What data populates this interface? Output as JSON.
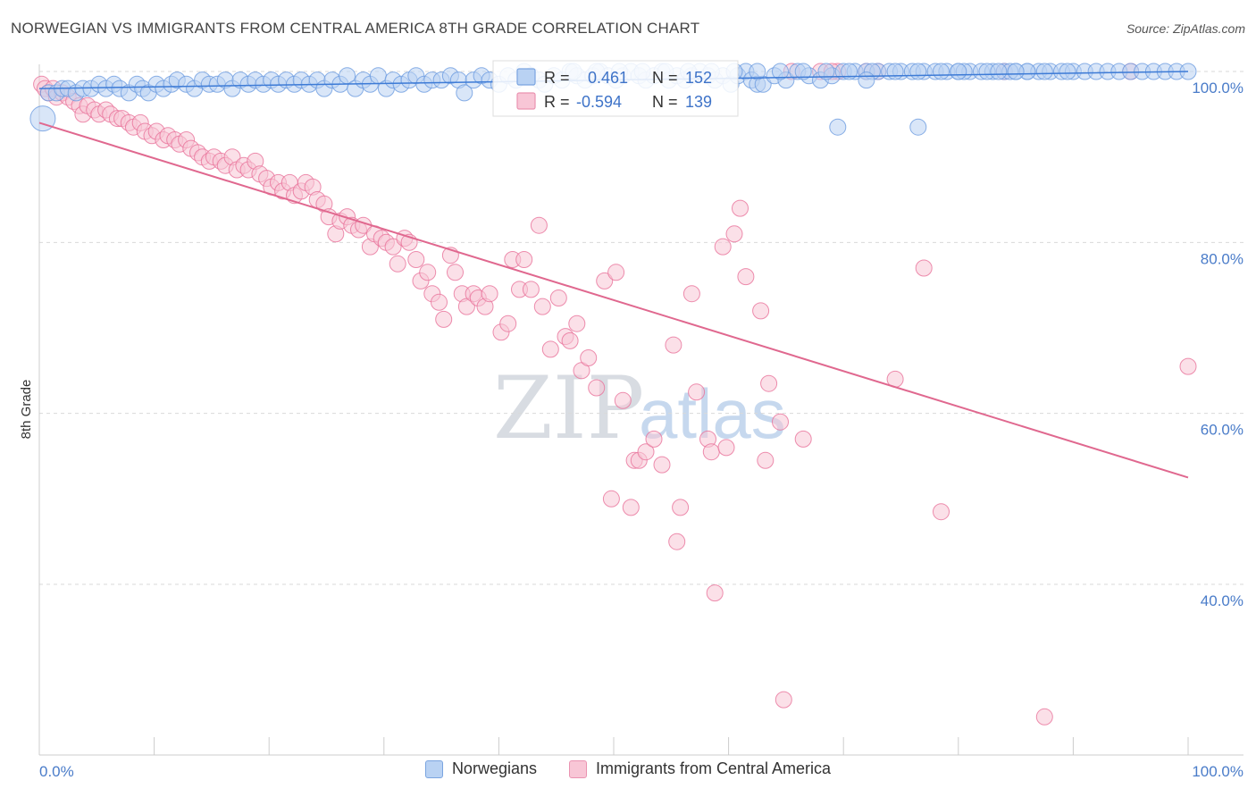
{
  "chart_data": {
    "type": "scatter",
    "title": "NORWEGIAN VS IMMIGRANTS FROM CENTRAL AMERICA 8TH GRADE CORRELATION CHART",
    "source": "Source: ZipAtlas.com",
    "ylabel": "8th Grade",
    "xlabel": "",
    "xlim": [
      0,
      100
    ],
    "ylim": [
      20,
      102
    ],
    "x_tick_labels": {
      "left": "0.0%",
      "right": "100.0%"
    },
    "y_ticks": [
      {
        "value": 100,
        "label": "100.0%"
      },
      {
        "value": 80,
        "label": "80.0%"
      },
      {
        "value": 60,
        "label": "60.0%"
      },
      {
        "value": 40,
        "label": "40.0%"
      }
    ],
    "watermark": {
      "a": "ZIP",
      "b": "atlas"
    },
    "stats_legend": {
      "r_label": "R =",
      "n_label": "N =",
      "rows": [
        {
          "series": "Norwegians",
          "r": "0.461",
          "n": "152"
        },
        {
          "series": "Immigrants from Central America",
          "r": "-0.594",
          "n": "139"
        }
      ]
    },
    "series": [
      {
        "name": "Norwegians",
        "color": "#6b9be0",
        "fill": "#b9d2f3",
        "trend": {
          "x": [
            0,
            100
          ],
          "y": [
            98.0,
            100.0
          ]
        },
        "points": [
          [
            0.3,
            94.5
          ],
          [
            0.8,
            97.5
          ],
          [
            1.5,
            97.5
          ],
          [
            2.0,
            98.0
          ],
          [
            2.5,
            98.0
          ],
          [
            3.2,
            97.5
          ],
          [
            3.8,
            98.0
          ],
          [
            4.5,
            98.0
          ],
          [
            5.2,
            98.5
          ],
          [
            5.8,
            98.0
          ],
          [
            6.5,
            98.5
          ],
          [
            7.0,
            98.0
          ],
          [
            7.8,
            97.5
          ],
          [
            8.5,
            98.5
          ],
          [
            9.0,
            98.0
          ],
          [
            9.5,
            97.5
          ],
          [
            10.2,
            98.5
          ],
          [
            10.8,
            98.0
          ],
          [
            11.5,
            98.5
          ],
          [
            12.0,
            99.0
          ],
          [
            12.8,
            98.5
          ],
          [
            13.5,
            98.0
          ],
          [
            14.2,
            99.0
          ],
          [
            14.8,
            98.5
          ],
          [
            15.5,
            98.5
          ],
          [
            16.2,
            99.0
          ],
          [
            16.8,
            98.0
          ],
          [
            17.5,
            99.0
          ],
          [
            18.2,
            98.5
          ],
          [
            18.8,
            99.0
          ],
          [
            19.5,
            98.5
          ],
          [
            20.2,
            99.0
          ],
          [
            20.8,
            98.5
          ],
          [
            21.5,
            99.0
          ],
          [
            22.2,
            98.5
          ],
          [
            22.8,
            99.0
          ],
          [
            23.5,
            98.5
          ],
          [
            24.2,
            99.0
          ],
          [
            24.8,
            98.0
          ],
          [
            25.5,
            99.0
          ],
          [
            26.2,
            98.5
          ],
          [
            26.8,
            99.5
          ],
          [
            27.5,
            98.0
          ],
          [
            28.2,
            99.0
          ],
          [
            28.8,
            98.5
          ],
          [
            29.5,
            99.5
          ],
          [
            30.2,
            98.0
          ],
          [
            30.8,
            99.0
          ],
          [
            31.5,
            98.5
          ],
          [
            32.2,
            99.0
          ],
          [
            32.8,
            99.5
          ],
          [
            33.5,
            98.5
          ],
          [
            34.2,
            99.0
          ],
          [
            35.0,
            99.0
          ],
          [
            35.8,
            99.5
          ],
          [
            36.5,
            99.0
          ],
          [
            37.0,
            97.5
          ],
          [
            37.8,
            99.0
          ],
          [
            38.5,
            99.5
          ],
          [
            39.2,
            99.0
          ],
          [
            40.0,
            98.5
          ],
          [
            40.8,
            99.5
          ],
          [
            41.5,
            99.0
          ],
          [
            42.2,
            100.0
          ],
          [
            42.8,
            99.5
          ],
          [
            43.5,
            99.0
          ],
          [
            44.0,
            98.5
          ],
          [
            44.8,
            99.5
          ],
          [
            45.5,
            99.0
          ],
          [
            46.2,
            100.0
          ],
          [
            46.8,
            99.5
          ],
          [
            47.5,
            99.0
          ],
          [
            48.2,
            99.5
          ],
          [
            48.8,
            100.0
          ],
          [
            49.5,
            99.5
          ],
          [
            50.2,
            99.0
          ],
          [
            50.8,
            99.5
          ],
          [
            51.5,
            100.0
          ],
          [
            52.2,
            99.5
          ],
          [
            52.8,
            99.0
          ],
          [
            53.5,
            99.5
          ],
          [
            54.2,
            100.0
          ],
          [
            54.8,
            99.0
          ],
          [
            55.5,
            99.5
          ],
          [
            56.2,
            99.0
          ],
          [
            56.8,
            99.5
          ],
          [
            57.5,
            100.0
          ],
          [
            58.2,
            99.5
          ],
          [
            58.8,
            99.0
          ],
          [
            59.5,
            99.5
          ],
          [
            60.2,
            98.5
          ],
          [
            60.8,
            99.5
          ],
          [
            61.5,
            100.0
          ],
          [
            62.0,
            99.0
          ],
          [
            62.5,
            98.5
          ],
          [
            63.0,
            98.5
          ],
          [
            64.0,
            99.5
          ],
          [
            65.0,
            99.0
          ],
          [
            66.0,
            100.0
          ],
          [
            67.0,
            99.5
          ],
          [
            68.0,
            99.0
          ],
          [
            69.0,
            99.5
          ],
          [
            70.0,
            100.0
          ],
          [
            71.0,
            100.0
          ],
          [
            72.0,
            100.0
          ],
          [
            73.0,
            100.0
          ],
          [
            74.0,
            100.0
          ],
          [
            75.0,
            100.0
          ],
          [
            76.0,
            100.0
          ],
          [
            77.0,
            100.0
          ],
          [
            78.0,
            100.0
          ],
          [
            79.0,
            100.0
          ],
          [
            80.0,
            100.0
          ],
          [
            81.0,
            100.0
          ],
          [
            82.0,
            100.0
          ],
          [
            83.0,
            100.0
          ],
          [
            84.0,
            100.0
          ],
          [
            85.0,
            100.0
          ],
          [
            86.0,
            100.0
          ],
          [
            87.0,
            100.0
          ],
          [
            88.0,
            100.0
          ],
          [
            89.0,
            100.0
          ],
          [
            90.0,
            100.0
          ],
          [
            91.0,
            100.0
          ],
          [
            92.0,
            100.0
          ],
          [
            93.0,
            100.0
          ],
          [
            94.0,
            100.0
          ],
          [
            95.0,
            100.0
          ],
          [
            96.0,
            100.0
          ],
          [
            97.0,
            100.0
          ],
          [
            98.0,
            100.0
          ],
          [
            99.0,
            100.0
          ],
          [
            100.0,
            100.0
          ],
          [
            86.0,
            100.0
          ],
          [
            84.5,
            100.0
          ],
          [
            82.5,
            100.0
          ],
          [
            80.5,
            100.0
          ],
          [
            78.5,
            100.0
          ],
          [
            76.5,
            100.0
          ],
          [
            74.5,
            100.0
          ],
          [
            72.5,
            100.0
          ],
          [
            70.5,
            100.0
          ],
          [
            68.5,
            100.0
          ],
          [
            66.5,
            100.0
          ],
          [
            64.5,
            100.0
          ],
          [
            62.5,
            100.0
          ],
          [
            60.5,
            100.0
          ],
          [
            58.5,
            100.0
          ],
          [
            56.5,
            100.0
          ],
          [
            54.5,
            100.0
          ],
          [
            52.5,
            100.0
          ],
          [
            50.5,
            100.0
          ],
          [
            48.5,
            100.0
          ],
          [
            46.5,
            100.0
          ],
          [
            69.5,
            93.5
          ],
          [
            76.5,
            93.5
          ],
          [
            72.0,
            99.0
          ],
          [
            80.0,
            100.0
          ],
          [
            83.5,
            100.0
          ],
          [
            85.0,
            100.0
          ],
          [
            87.5,
            100.0
          ],
          [
            89.5,
            100.0
          ]
        ]
      },
      {
        "name": "Immigrants from Central America",
        "color": "#e8729a",
        "fill": "#f8c6d6",
        "trend": {
          "x": [
            0,
            100
          ],
          "y": [
            94.0,
            52.5
          ]
        },
        "points": [
          [
            0.2,
            98.5
          ],
          [
            0.5,
            98.0
          ],
          [
            0.8,
            97.5
          ],
          [
            1.2,
            98.0
          ],
          [
            1.5,
            97.0
          ],
          [
            2.0,
            97.5
          ],
          [
            2.5,
            97.0
          ],
          [
            3.0,
            96.5
          ],
          [
            3.5,
            96.0
          ],
          [
            3.8,
            95.0
          ],
          [
            4.2,
            96.0
          ],
          [
            4.8,
            95.5
          ],
          [
            5.2,
            95.0
          ],
          [
            5.8,
            95.5
          ],
          [
            6.2,
            95.0
          ],
          [
            6.8,
            94.5
          ],
          [
            7.2,
            94.5
          ],
          [
            7.8,
            94.0
          ],
          [
            8.2,
            93.5
          ],
          [
            8.8,
            94.0
          ],
          [
            9.2,
            93.0
          ],
          [
            9.8,
            92.5
          ],
          [
            10.2,
            93.0
          ],
          [
            10.8,
            92.0
          ],
          [
            11.2,
            92.5
          ],
          [
            11.8,
            92.0
          ],
          [
            12.2,
            91.5
          ],
          [
            12.8,
            92.0
          ],
          [
            13.2,
            91.0
          ],
          [
            13.8,
            90.5
          ],
          [
            14.2,
            90.0
          ],
          [
            14.8,
            89.5
          ],
          [
            15.2,
            90.0
          ],
          [
            15.8,
            89.5
          ],
          [
            16.2,
            89.0
          ],
          [
            16.8,
            90.0
          ],
          [
            17.2,
            88.5
          ],
          [
            17.8,
            89.0
          ],
          [
            18.2,
            88.5
          ],
          [
            18.8,
            89.5
          ],
          [
            19.2,
            88.0
          ],
          [
            19.8,
            87.5
          ],
          [
            20.2,
            86.5
          ],
          [
            20.8,
            87.0
          ],
          [
            21.2,
            86.0
          ],
          [
            21.8,
            87.0
          ],
          [
            22.2,
            85.5
          ],
          [
            22.8,
            86.0
          ],
          [
            23.2,
            87.0
          ],
          [
            23.8,
            86.5
          ],
          [
            24.2,
            85.0
          ],
          [
            24.8,
            84.5
          ],
          [
            25.2,
            83.0
          ],
          [
            25.8,
            81.0
          ],
          [
            26.2,
            82.5
          ],
          [
            26.8,
            83.0
          ],
          [
            27.2,
            82.0
          ],
          [
            27.8,
            81.5
          ],
          [
            28.2,
            82.0
          ],
          [
            28.8,
            79.5
          ],
          [
            29.2,
            81.0
          ],
          [
            29.8,
            80.5
          ],
          [
            30.2,
            80.0
          ],
          [
            30.8,
            79.5
          ],
          [
            31.2,
            77.5
          ],
          [
            31.8,
            80.5
          ],
          [
            32.2,
            80.0
          ],
          [
            32.8,
            78.0
          ],
          [
            33.2,
            75.5
          ],
          [
            33.8,
            76.5
          ],
          [
            34.2,
            74.0
          ],
          [
            34.8,
            73.0
          ],
          [
            35.2,
            71.0
          ],
          [
            35.8,
            78.5
          ],
          [
            36.2,
            76.5
          ],
          [
            36.8,
            74.0
          ],
          [
            37.2,
            72.5
          ],
          [
            37.8,
            74.0
          ],
          [
            38.2,
            73.5
          ],
          [
            38.8,
            72.5
          ],
          [
            39.2,
            74.0
          ],
          [
            40.2,
            69.5
          ],
          [
            40.8,
            70.5
          ],
          [
            41.2,
            78.0
          ],
          [
            41.8,
            74.5
          ],
          [
            42.2,
            78.0
          ],
          [
            42.8,
            74.5
          ],
          [
            43.5,
            82.0
          ],
          [
            43.8,
            72.5
          ],
          [
            44.5,
            67.5
          ],
          [
            45.2,
            73.5
          ],
          [
            45.8,
            69.0
          ],
          [
            46.2,
            68.5
          ],
          [
            46.8,
            70.5
          ],
          [
            47.2,
            65.0
          ],
          [
            47.8,
            66.5
          ],
          [
            48.5,
            63.0
          ],
          [
            49.2,
            75.5
          ],
          [
            49.8,
            50.0
          ],
          [
            50.2,
            76.5
          ],
          [
            50.8,
            61.5
          ],
          [
            51.5,
            49.0
          ],
          [
            51.8,
            54.5
          ],
          [
            52.2,
            54.5
          ],
          [
            52.8,
            55.5
          ],
          [
            53.5,
            57.0
          ],
          [
            54.2,
            54.0
          ],
          [
            55.2,
            68.0
          ],
          [
            55.5,
            45.0
          ],
          [
            55.8,
            49.0
          ],
          [
            56.8,
            74.0
          ],
          [
            57.2,
            62.5
          ],
          [
            58.2,
            57.0
          ],
          [
            58.5,
            55.5
          ],
          [
            58.8,
            39.0
          ],
          [
            59.5,
            79.5
          ],
          [
            59.8,
            56.0
          ],
          [
            60.5,
            81.0
          ],
          [
            61.0,
            84.0
          ],
          [
            61.5,
            76.0
          ],
          [
            62.8,
            72.0
          ],
          [
            63.2,
            54.5
          ],
          [
            63.5,
            63.5
          ],
          [
            64.5,
            59.0
          ],
          [
            64.8,
            26.5
          ],
          [
            66.5,
            57.0
          ],
          [
            68.0,
            100.0
          ],
          [
            69.5,
            100.0
          ],
          [
            73.0,
            100.0
          ],
          [
            74.5,
            64.0
          ],
          [
            77.0,
            77.0
          ],
          [
            78.5,
            48.5
          ],
          [
            84.0,
            100.0
          ],
          [
            87.5,
            24.5
          ],
          [
            95.0,
            100.0
          ],
          [
            100.0,
            65.5
          ],
          [
            65.5,
            100.0
          ],
          [
            69.0,
            100.0
          ],
          [
            72.0,
            100.0
          ]
        ]
      }
    ]
  }
}
